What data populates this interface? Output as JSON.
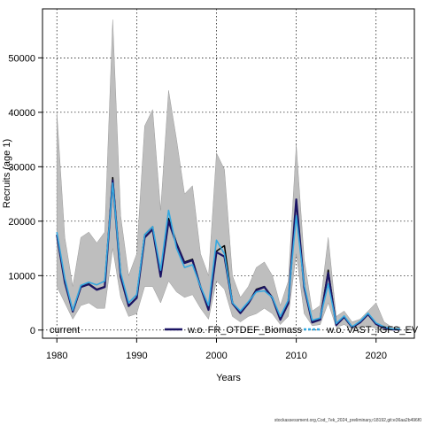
{
  "chart_data": {
    "type": "line",
    "title": "",
    "xlabel": "Years",
    "ylabel": "Recruits (age 1)",
    "xlim": [
      1978.2,
      2024.8
    ],
    "ylim": [
      -1500,
      59000
    ],
    "grid": true,
    "xticks": [
      1980,
      1990,
      2000,
      2010,
      2020
    ],
    "yticks": [
      0,
      10000,
      20000,
      30000,
      40000,
      50000
    ],
    "xtick_labels": [
      "1980",
      "1990",
      "2000",
      "2010",
      "2020"
    ],
    "ytick_labels": [
      "0",
      "10000",
      "20000",
      "30000",
      "40000",
      "50000"
    ],
    "x": [
      1980,
      1981,
      1982,
      1983,
      1984,
      1985,
      1986,
      1987,
      1988,
      1989,
      1990,
      1991,
      1992,
      1993,
      1994,
      1995,
      1996,
      1997,
      1998,
      1999,
      2000,
      2001,
      2002,
      2003,
      2004,
      2005,
      2006,
      2007,
      2008,
      2009,
      2010,
      2011,
      2012,
      2013,
      2014,
      2015,
      2016,
      2017,
      2018,
      2019,
      2020,
      2021,
      2022,
      2023
    ],
    "band": {
      "color": "#bebebe",
      "lower": [
        8000,
        5000,
        2000,
        4500,
        5000,
        4000,
        4000,
        15000,
        6000,
        2500,
        3000,
        8000,
        8000,
        5000,
        9000,
        7000,
        6000,
        6500,
        4000,
        2000,
        9000,
        7500,
        2500,
        1500,
        2500,
        3000,
        4000,
        3000,
        1000,
        2500,
        14000,
        3000,
        800,
        1000,
        5000,
        500,
        1000,
        200,
        400,
        800,
        300,
        100,
        0,
        0
      ],
      "upper": [
        40000,
        17000,
        8000,
        17000,
        18000,
        16000,
        18000,
        57000,
        21000,
        10000,
        14000,
        37500,
        40500,
        22000,
        44000,
        35000,
        25000,
        26500,
        14000,
        10000,
        32500,
        29500,
        10000,
        6000,
        8000,
        11500,
        12500,
        10000,
        4500,
        9000,
        34000,
        13000,
        3500,
        4500,
        17000,
        2500,
        3500,
        1500,
        2000,
        3500,
        5000,
        1500,
        500,
        600
      ]
    },
    "series": [
      {
        "name": "current",
        "color": "#000000",
        "values": [
          17500,
          9000,
          3500,
          8000,
          8500,
          7500,
          8000,
          28000,
          10000,
          4500,
          6000,
          17500,
          19000,
          10000,
          20500,
          16000,
          12500,
          13000,
          8000,
          3800,
          14500,
          15500,
          5000,
          3200,
          5000,
          7500,
          8000,
          6000,
          2000,
          5000,
          24000,
          8000,
          1500,
          2000,
          11000,
          1000,
          2500,
          500,
          1500,
          3000,
          1200,
          500,
          100,
          100
        ]
      },
      {
        "name": "w.o. FR_OTDEF_Biomass",
        "color": "#1b1464",
        "values": [
          17500,
          8800,
          3400,
          7900,
          8400,
          7400,
          7900,
          27500,
          9800,
          4400,
          5900,
          17000,
          18500,
          9800,
          20000,
          15800,
          12300,
          12800,
          7900,
          3700,
          14300,
          13500,
          4900,
          3100,
          4900,
          7300,
          7900,
          5900,
          1900,
          4900,
          24000,
          7800,
          1400,
          1900,
          10500,
          900,
          2400,
          500,
          1400,
          2900,
          1100,
          400,
          100,
          100
        ]
      },
      {
        "name": "w.o. VAST_IGFS_EV",
        "color": "#33a8e0",
        "values": [
          18000,
          9500,
          3600,
          8200,
          8800,
          8300,
          9000,
          27000,
          10500,
          5000,
          6500,
          17500,
          19000,
          11000,
          22000,
          15000,
          11500,
          12000,
          8000,
          4500,
          16500,
          14000,
          5000,
          3500,
          5200,
          7000,
          7200,
          6000,
          2500,
          5500,
          21000,
          8200,
          1800,
          2200,
          8500,
          1200,
          2600,
          600,
          1600,
          3100,
          1300,
          600,
          200,
          200
        ]
      }
    ],
    "legend": {
      "placement": "bottom",
      "entries": [
        "current",
        "w.o. FR_OTDEF_Biomass",
        "w.o. VAST_IGFS_EV"
      ]
    }
  },
  "footer": {
    "text": "stockassessment.org,Cod_7ek_2024_preliminary,r18192,git:e36aa2b496f0"
  }
}
